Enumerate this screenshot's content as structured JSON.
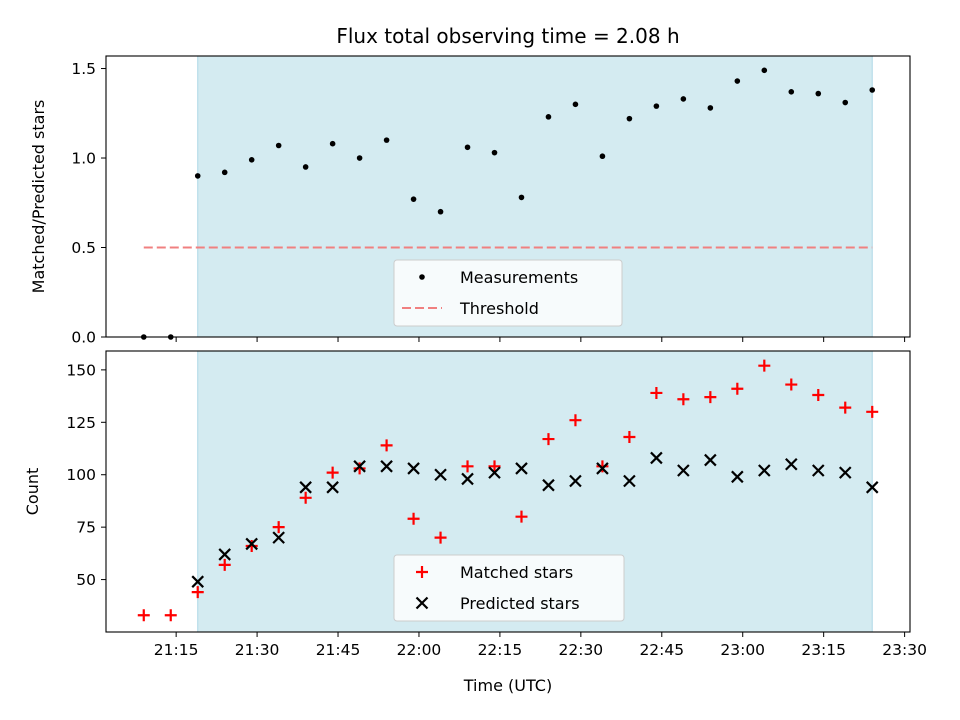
{
  "chart_data": {
    "title": "Flux total observing time = 2.08 h",
    "xlabel": "Time (UTC)",
    "x_ticks": [
      "21:15",
      "21:30",
      "21:45",
      "22:00",
      "22:15",
      "22:30",
      "22:45",
      "23:00",
      "23:15",
      "23:30"
    ],
    "x_tick_minutes": [
      15,
      30,
      45,
      60,
      75,
      90,
      105,
      120,
      135,
      150
    ],
    "x_range": [
      "21:02",
      "23:31"
    ],
    "observing_window": [
      "21:19",
      "23:24"
    ],
    "colors": {
      "window": "#d4ebf1",
      "window_edge": "#add8e6",
      "threshold": "#f08080",
      "matched": "#ff0000",
      "predicted": "#000000"
    },
    "panels": [
      {
        "type": "scatter",
        "ylabel": "Matched/Predicted stars",
        "ylim": [
          0,
          1.57
        ],
        "y_ticks": [
          "0.0",
          "0.5",
          "1.0",
          "1.5"
        ],
        "y_tick_values": [
          0,
          0.5,
          1.0,
          1.5
        ],
        "legend_location": "lower-center",
        "series": [
          {
            "name": "Measurements",
            "marker": "dot",
            "x": [
              "21:09",
              "21:14",
              "21:19",
              "21:24",
              "21:29",
              "21:34",
              "21:39",
              "21:44",
              "21:49",
              "21:54",
              "21:59",
              "22:04",
              "22:09",
              "22:14",
              "22:19",
              "22:24",
              "22:29",
              "22:34",
              "22:39",
              "22:44",
              "22:49",
              "22:54",
              "22:59",
              "23:04",
              "23:09",
              "23:14",
              "23:19",
              "23:24"
            ],
            "y": [
              0.0,
              0.0,
              0.9,
              0.92,
              0.99,
              1.07,
              0.95,
              1.08,
              1.0,
              1.1,
              0.77,
              0.7,
              1.06,
              1.03,
              0.78,
              1.23,
              1.3,
              1.01,
              1.22,
              1.29,
              1.33,
              1.28,
              1.43,
              1.49,
              1.37,
              1.36,
              1.31,
              1.38
            ]
          },
          {
            "name": "Threshold",
            "marker": "dashed-line",
            "x": [
              "21:09",
              "23:24"
            ],
            "y": [
              0.5,
              0.5
            ]
          }
        ]
      },
      {
        "type": "scatter",
        "ylabel": "Count",
        "ylim": [
          25,
          159
        ],
        "y_ticks": [
          "50",
          "75",
          "100",
          "125",
          "150"
        ],
        "y_tick_values": [
          50,
          75,
          100,
          125,
          150
        ],
        "legend_location": "lower-center",
        "series": [
          {
            "name": "Matched stars",
            "marker": "plus",
            "x": [
              "21:09",
              "21:14",
              "21:19",
              "21:24",
              "21:29",
              "21:34",
              "21:39",
              "21:44",
              "21:49",
              "21:54",
              "21:59",
              "22:04",
              "22:09",
              "22:14",
              "22:19",
              "22:24",
              "22:29",
              "22:34",
              "22:39",
              "22:44",
              "22:49",
              "22:54",
              "22:59",
              "23:04",
              "23:09",
              "23:14",
              "23:19",
              "23:24"
            ],
            "y": [
              33,
              33,
              44,
              57,
              66,
              75,
              89,
              101,
              103,
              114,
              79,
              70,
              104,
              104,
              80,
              117,
              126,
              104,
              118,
              139,
              136,
              137,
              141,
              152,
              143,
              138,
              132,
              130
            ]
          },
          {
            "name": "Predicted stars",
            "marker": "x",
            "x": [
              "21:19",
              "21:24",
              "21:29",
              "21:34",
              "21:39",
              "21:44",
              "21:49",
              "21:54",
              "21:59",
              "22:04",
              "22:09",
              "22:14",
              "22:19",
              "22:24",
              "22:29",
              "22:34",
              "22:39",
              "22:44",
              "22:49",
              "22:54",
              "22:59",
              "23:04",
              "23:09",
              "23:14",
              "23:19",
              "23:24"
            ],
            "y": [
              49,
              62,
              67,
              70,
              94,
              94,
              104,
              104,
              103,
              100,
              98,
              101,
              103,
              95,
              97,
              103,
              97,
              108,
              102,
              107,
              99,
              102,
              105,
              102,
              101,
              94
            ]
          }
        ]
      }
    ]
  }
}
